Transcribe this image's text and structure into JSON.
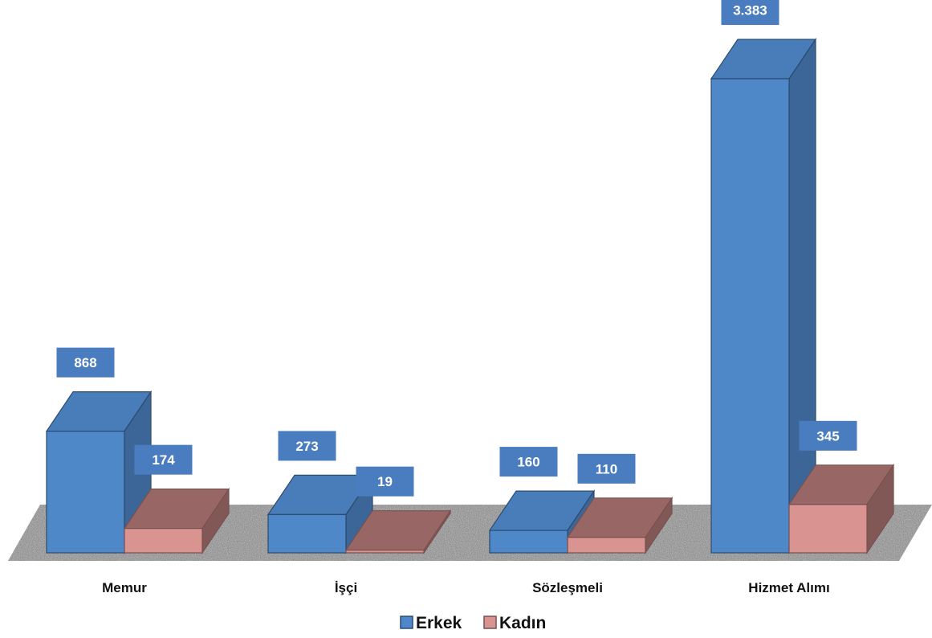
{
  "chart_data": {
    "type": "bar",
    "three_d": true,
    "categories": [
      "Memur",
      "İşçi",
      "Sözleşmeli",
      "Hizmet Alımı"
    ],
    "series": [
      {
        "name": "Erkek",
        "values": [
          868,
          273,
          160,
          3383
        ],
        "labels": [
          "868",
          "273",
          "160",
          "3.383"
        ],
        "color": "#4f88c9"
      },
      {
        "name": "Kadın",
        "values": [
          174,
          19,
          110,
          345
        ],
        "labels": [
          "174",
          "19",
          "110",
          "345"
        ],
        "color": "#d99390"
      }
    ],
    "ylim": [
      0,
      3383
    ],
    "grid": false,
    "legend_position": "bottom",
    "data_label_color": "#4a7dbf",
    "floor_texture": "granite"
  }
}
